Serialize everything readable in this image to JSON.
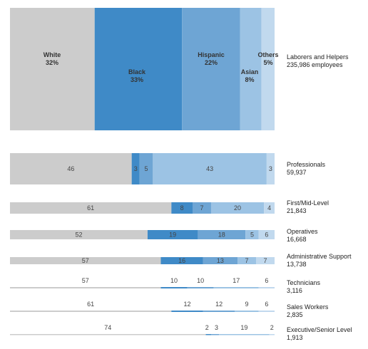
{
  "chart_data": {
    "type": "bar",
    "subtype": "100%-stacked-horizontal",
    "series": [
      {
        "name": "White",
        "color": "#cccccc"
      },
      {
        "name": "Black",
        "color": "#3f8ac7"
      },
      {
        "name": "Hispanic",
        "color": "#6ea5d4"
      },
      {
        "name": "Asian",
        "color": "#9cc3e4"
      },
      {
        "name": "Others",
        "color": "#c1d9ee"
      }
    ],
    "rows": [
      {
        "category": "Laborers and Helpers",
        "count": "235,986 employees",
        "values": [
          32,
          33,
          22,
          8,
          5
        ],
        "labels": [
          "32%",
          "33%",
          "22%",
          "8%",
          "5%"
        ]
      },
      {
        "category": "Professionals",
        "count": "59,937",
        "values": [
          46,
          3,
          5,
          43,
          3
        ],
        "labels": [
          "46",
          "3",
          "5",
          "43",
          "3"
        ]
      },
      {
        "category": "First/Mid-Level",
        "count": "21,843",
        "values": [
          61,
          8,
          7,
          20,
          4
        ],
        "labels": [
          "61",
          "8",
          "7",
          "20",
          "4"
        ]
      },
      {
        "category": "Operatives",
        "count": "16,668",
        "values": [
          52,
          19,
          18,
          5,
          6
        ],
        "labels": [
          "52",
          "19",
          "18",
          "5",
          "6"
        ]
      },
      {
        "category": "Administrative Support",
        "count": "13,738",
        "values": [
          57,
          16,
          13,
          7,
          7
        ],
        "labels": [
          "57",
          "16",
          "13",
          "7",
          "7"
        ]
      },
      {
        "category": "Technicians",
        "count": "3,116",
        "values": [
          57,
          10,
          10,
          17,
          6
        ],
        "labels": [
          "57",
          "10",
          "10",
          "17",
          "6"
        ]
      },
      {
        "category": "Sales Workers",
        "count": "2,835",
        "values": [
          61,
          12,
          12,
          9,
          6
        ],
        "labels": [
          "61",
          "12",
          "12",
          "9",
          "6"
        ]
      },
      {
        "category": "Executive/Senior Level",
        "count": "1,913",
        "values": [
          74,
          2,
          3,
          19,
          2
        ],
        "labels": [
          "74",
          "2",
          "3",
          "19",
          "2"
        ]
      }
    ],
    "xlim": [
      0,
      100
    ]
  }
}
